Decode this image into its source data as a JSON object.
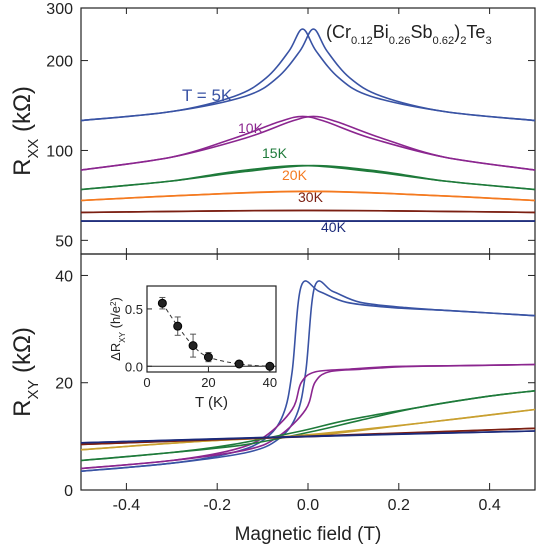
{
  "figure": {
    "compound_label": "(Cr0.12Bi0.26Sb0.62)2Te3"
  },
  "chart_data": [
    {
      "type": "line",
      "panel": "top",
      "ylabel": "RXX (kΩ)",
      "xlabel": "",
      "xlim": [
        -0.5,
        0.5
      ],
      "ylim": [
        45,
        300
      ],
      "yscale": "log",
      "yticks": [
        50,
        100,
        200,
        300
      ],
      "x_tick_labels_shown": false,
      "series": [
        {
          "name": "T = 5K",
          "color": "#3953a4",
          "x": [
            -0.5,
            -0.3,
            -0.15,
            -0.08,
            -0.03,
            0.0,
            0.03,
            0.08,
            0.15,
            0.3,
            0.5
          ],
          "y": [
            126,
            135,
            152,
            175,
            215,
            255,
            215,
            175,
            152,
            135,
            126
          ]
        },
        {
          "name": "10K",
          "color": "#8b268f",
          "x": [
            -0.5,
            -0.3,
            -0.15,
            -0.05,
            0.0,
            0.05,
            0.15,
            0.3,
            0.5
          ],
          "y": [
            86,
            95,
            110,
            125,
            130,
            125,
            110,
            95,
            86
          ]
        },
        {
          "name": "15K",
          "color": "#1e7a3a",
          "x": [
            -0.5,
            -0.3,
            -0.15,
            0.0,
            0.15,
            0.3,
            0.5
          ],
          "y": [
            74,
            79,
            85,
            89,
            85,
            79,
            74
          ]
        },
        {
          "name": "20K",
          "color": "#f47a20",
          "x": [
            -0.5,
            -0.25,
            0.0,
            0.25,
            0.5
          ],
          "y": [
            68,
            71,
            73,
            71,
            68
          ]
        },
        {
          "name": "30K",
          "color": "#7b1f12",
          "x": [
            -0.5,
            0.0,
            0.5
          ],
          "y": [
            62,
            63,
            62
          ]
        },
        {
          "name": "40K",
          "color": "#1b2a7a",
          "x": [
            -0.5,
            0.0,
            0.5
          ],
          "y": [
            58,
            58,
            58
          ]
        }
      ]
    },
    {
      "type": "line",
      "panel": "bottom",
      "ylabel": "RXY (kΩ)",
      "xlabel": "Magnetic field (T)",
      "xlim": [
        -0.5,
        0.5
      ],
      "ylim": [
        0,
        44
      ],
      "xticks": [
        -0.4,
        -0.2,
        0.0,
        0.2,
        0.4
      ],
      "x_tick_labels": [
        "-0.4",
        "-0.2",
        "0.0",
        "0.2",
        "0.4"
      ],
      "yticks": [
        0,
        20,
        40
      ],
      "series": [
        {
          "name": "5K",
          "color": "#3953a4",
          "x": [
            -0.5,
            -0.3,
            -0.15,
            -0.08,
            -0.04,
            -0.02,
            0.0,
            0.04,
            0.1,
            0.2,
            0.3,
            0.4,
            0.5
          ],
          "y": [
            3.5,
            5,
            7,
            9.5,
            14,
            22,
            38,
            37,
            35,
            34,
            33.5,
            33,
            32.5
          ]
        },
        {
          "name": "10K",
          "color": "#8b268f",
          "x": [
            -0.5,
            -0.3,
            -0.15,
            -0.08,
            -0.02,
            0.0,
            0.03,
            0.1,
            0.2,
            0.35,
            0.5
          ],
          "y": [
            4,
            5.5,
            7.5,
            10,
            15,
            20,
            22,
            22.5,
            23,
            23.2,
            23.4
          ]
        },
        {
          "name": "15K",
          "color": "#1e7a3a",
          "x": [
            -0.5,
            -0.3,
            -0.15,
            0.0,
            0.1,
            0.25,
            0.4,
            0.5
          ],
          "y": [
            5.5,
            7,
            8.5,
            11,
            13,
            15.5,
            17.5,
            18.5
          ]
        },
        {
          "name": "20K",
          "color": "#c9a030",
          "x": [
            -0.5,
            -0.25,
            0.0,
            0.25,
            0.5
          ],
          "y": [
            7.5,
            9,
            10.2,
            12.5,
            15
          ]
        },
        {
          "name": "30K",
          "color": "#7b1f12",
          "x": [
            -0.5,
            0.0,
            0.5
          ],
          "y": [
            8.5,
            10,
            11.5
          ]
        },
        {
          "name": "40K",
          "color": "#1b2a7a",
          "x": [
            -0.5,
            0.0,
            0.5
          ],
          "y": [
            8.8,
            10,
            11
          ]
        }
      ]
    },
    {
      "type": "scatter",
      "panel": "inset",
      "ylabel": "ΔRXY (h/e²)",
      "xlabel": "T (K)",
      "xlim": [
        0,
        42
      ],
      "ylim": [
        -0.05,
        0.7
      ],
      "xticks": [
        0,
        20,
        40
      ],
      "yticks": [
        0.0,
        0.5
      ],
      "x_tick_labels": [
        "0",
        "20",
        "40"
      ],
      "y_tick_labels": [
        "0.0",
        "0.5"
      ],
      "x": [
        5,
        10,
        15,
        20,
        30,
        40
      ],
      "y": [
        0.55,
        0.35,
        0.18,
        0.08,
        0.02,
        0.0
      ],
      "err": [
        0.05,
        0.08,
        0.1,
        0.04,
        0.015,
        0.01
      ]
    }
  ],
  "top_labels": [
    "T = 5K",
    "10K",
    "15K",
    "20K",
    "30K",
    "40K"
  ]
}
